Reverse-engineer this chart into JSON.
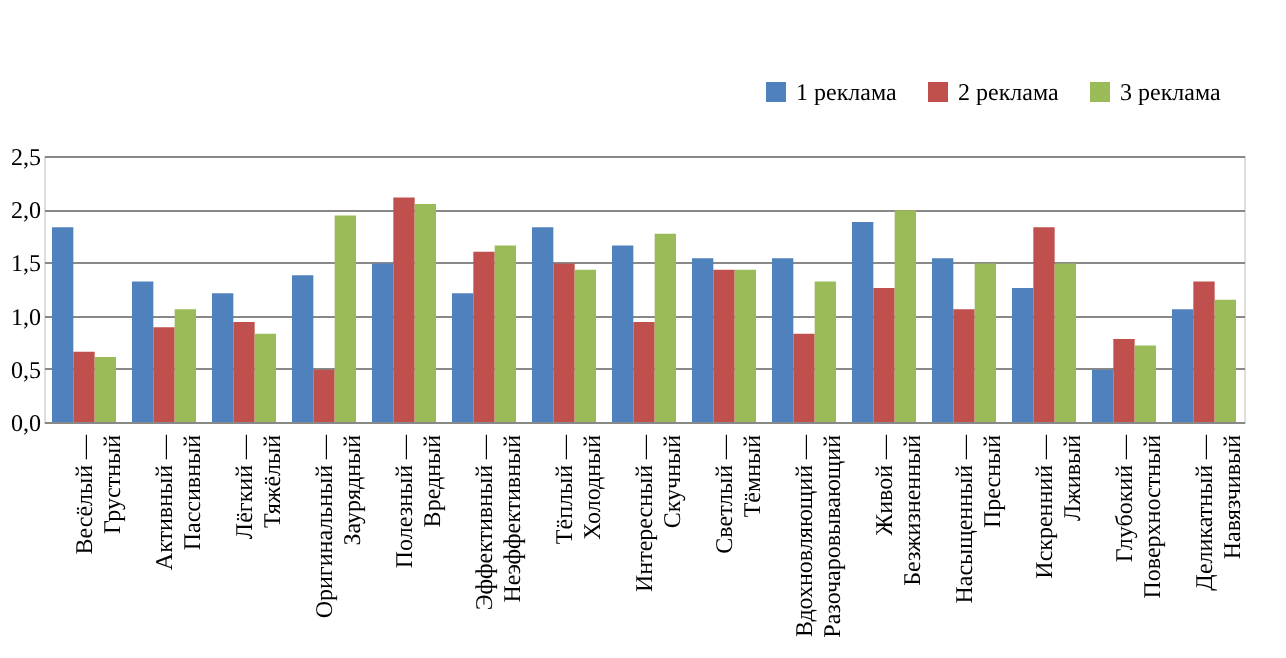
{
  "chart_data": {
    "type": "bar",
    "categories": [
      "Весёлый —\nГрустный",
      "Активный —\nПассивный",
      "Лёгкий —\nТяжёлый",
      "Оригинальный —\nЗаурядный",
      "Полезный —\nВредный",
      "Эффективный —\nНеэффективный",
      "Тёплый —\nХолодный",
      "Интересный —\nСкучный",
      "Светлый —\nТёмный",
      "Вдохновляющий —\nРазочаровывающий",
      "Живой —\nБезжизненный",
      "Насыщенный —\nПресный",
      "Искренний —\nЛживый",
      "Глубокий —\nПоверхностный",
      "Деликатный —\nНавязчивый"
    ],
    "series": [
      {
        "name": "1 реклама",
        "color": "#4f81bd",
        "values": [
          1.83,
          1.32,
          1.21,
          1.38,
          1.49,
          1.21,
          1.83,
          1.66,
          1.54,
          1.54,
          1.88,
          1.54,
          1.26,
          0.49,
          1.06
        ]
      },
      {
        "name": "2 реклама",
        "color": "#c0504d",
        "values": [
          0.66,
          0.89,
          0.94,
          0.49,
          2.11,
          1.6,
          1.49,
          0.94,
          1.43,
          0.83,
          1.26,
          1.06,
          1.83,
          0.78,
          1.32
        ]
      },
      {
        "name": "3 реклама",
        "color": "#9bbb59",
        "values": [
          0.61,
          1.06,
          0.83,
          1.94,
          2.05,
          1.66,
          1.43,
          1.77,
          1.43,
          1.32,
          1.99,
          1.49,
          1.49,
          0.72,
          1.15
        ]
      }
    ],
    "ylim": [
      0,
      2.5
    ],
    "yticks": [
      {
        "value": 0,
        "label": "0,0"
      },
      {
        "value": 0.5,
        "label": "0,5"
      },
      {
        "value": 1,
        "label": "1,0"
      },
      {
        "value": 1.5,
        "label": "1,5"
      },
      {
        "value": 2,
        "label": "2,0"
      },
      {
        "value": 2.5,
        "label": "2,5"
      }
    ],
    "grid": "y",
    "legend": "top right"
  }
}
